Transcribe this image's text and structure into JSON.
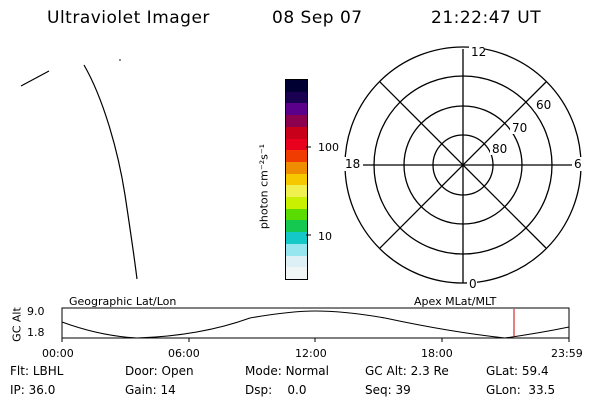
{
  "header": {
    "title": "Ultraviolet Imager",
    "date": "08 Sep 07",
    "time": "21:22:47 UT"
  },
  "colorbar": {
    "unit_label": "photon cm⁻²s⁻¹",
    "tick_labels": [
      "100",
      "10"
    ],
    "colors": [
      "#000033",
      "#1a0050",
      "#5a008a",
      "#8c0050",
      "#c8001a",
      "#e8001e",
      "#f03c00",
      "#f08c00",
      "#f5c800",
      "#f0f050",
      "#c8f000",
      "#5adc00",
      "#14c850",
      "#14c8c8",
      "#96e6f0",
      "#dcf0f5",
      "#f0f5f5"
    ]
  },
  "polar": {
    "mlt_labels": [
      "12",
      "18",
      "6",
      "0"
    ],
    "lat_labels": [
      "60",
      "70",
      "80"
    ]
  },
  "plot": {
    "left_label": "Geographic Lat/Lon",
    "right_label": "Apex MLat/MLT",
    "y_axis_label": "GC Alt",
    "y_ticks": [
      "9.0",
      "1.8"
    ],
    "x_ticks": [
      "00:00",
      "06:00",
      "12:00",
      "18:00",
      "23:59"
    ],
    "marker_color": "#cc0000"
  },
  "footer": {
    "row1": [
      {
        "key": "Flt:",
        "value": "LBHL"
      },
      {
        "key": "Door:",
        "value": "Open"
      },
      {
        "key": "Mode:",
        "value": "Normal"
      },
      {
        "key": "GC Alt:",
        "value": "2.3 Re"
      },
      {
        "key": "GLat:",
        "value": "59.4"
      }
    ],
    "row2": [
      {
        "key": "IP:",
        "value": "36.0"
      },
      {
        "key": "Gain:",
        "value": "14"
      },
      {
        "key": "Dsp:",
        "value": "0.0"
      },
      {
        "key": "Seq:",
        "value": "39"
      },
      {
        "key": "GLon:",
        "value": "33.5"
      }
    ]
  }
}
